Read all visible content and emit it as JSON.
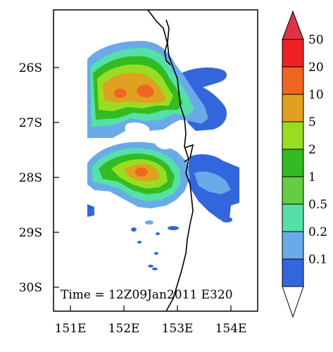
{
  "map": {
    "lon_ticks": [
      "151E",
      "152E",
      "153E",
      "154E"
    ],
    "lat_ticks": [
      "26S",
      "27S",
      "28S",
      "29S",
      "30S"
    ],
    "annotation": "Time = 12Z09Jan2011 E320"
  },
  "colorbar": {
    "labels": [
      "0.1",
      "0.2",
      "0.5",
      "1",
      "2",
      "5",
      "10",
      "20",
      "50"
    ],
    "colors": [
      "#ffffff",
      "#3366dd",
      "#6aaae8",
      "#55e0a8",
      "#66cc44",
      "#33bb22",
      "#99dd22",
      "#e0a020",
      "#ee6622",
      "#ee2222",
      "#dd3344"
    ]
  },
  "colors": {
    "ocean_blue_dark": "#3366dd",
    "blue_light": "#6aaae8",
    "teal": "#55e0a8",
    "green": "#33bb22",
    "yellow_green": "#99dd22",
    "orange": "#e0a020",
    "orange_red": "#ee6622",
    "coastline": "#000000"
  }
}
